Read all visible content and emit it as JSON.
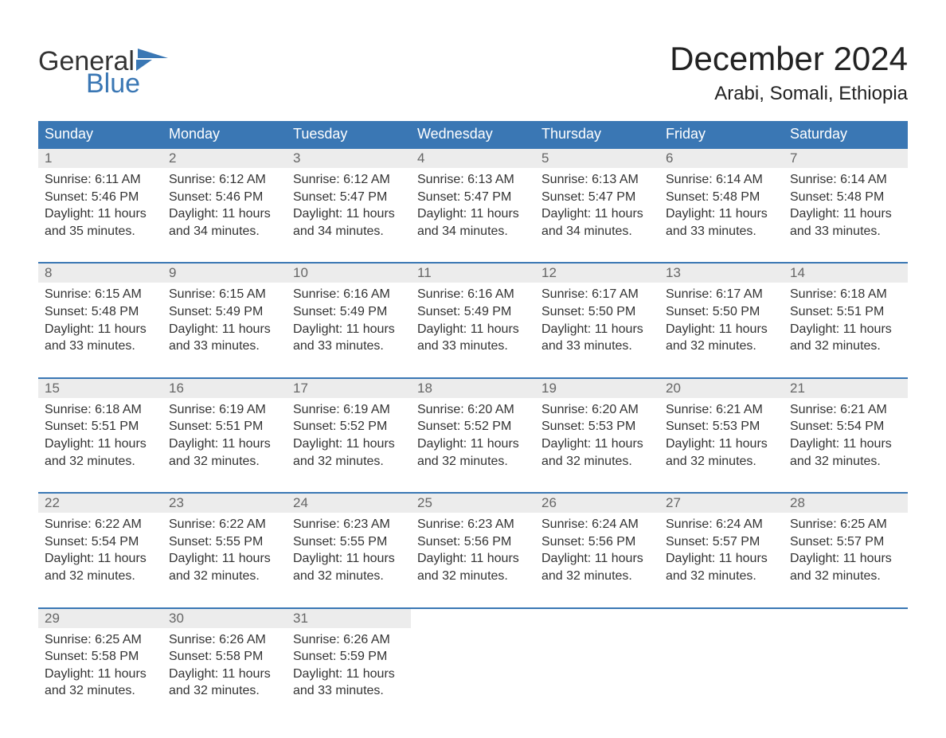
{
  "logo": {
    "word1": "General",
    "word2": "Blue",
    "flag_color": "#3a77b4"
  },
  "title": "December 2024",
  "location": "Arabi, Somali, Ethiopia",
  "colors": {
    "header_bg": "#3a77b4",
    "header_text": "#ffffff",
    "daynum_bg": "#ececec",
    "daynum_text": "#666666",
    "body_text": "#333333",
    "row_border": "#3a77b4"
  },
  "day_headers": [
    "Sunday",
    "Monday",
    "Tuesday",
    "Wednesday",
    "Thursday",
    "Friday",
    "Saturday"
  ],
  "weeks": [
    [
      {
        "num": "1",
        "sunrise": "Sunrise: 6:11 AM",
        "sunset": "Sunset: 5:46 PM",
        "dl1": "Daylight: 11 hours",
        "dl2": "and 35 minutes."
      },
      {
        "num": "2",
        "sunrise": "Sunrise: 6:12 AM",
        "sunset": "Sunset: 5:46 PM",
        "dl1": "Daylight: 11 hours",
        "dl2": "and 34 minutes."
      },
      {
        "num": "3",
        "sunrise": "Sunrise: 6:12 AM",
        "sunset": "Sunset: 5:47 PM",
        "dl1": "Daylight: 11 hours",
        "dl2": "and 34 minutes."
      },
      {
        "num": "4",
        "sunrise": "Sunrise: 6:13 AM",
        "sunset": "Sunset: 5:47 PM",
        "dl1": "Daylight: 11 hours",
        "dl2": "and 34 minutes."
      },
      {
        "num": "5",
        "sunrise": "Sunrise: 6:13 AM",
        "sunset": "Sunset: 5:47 PM",
        "dl1": "Daylight: 11 hours",
        "dl2": "and 34 minutes."
      },
      {
        "num": "6",
        "sunrise": "Sunrise: 6:14 AM",
        "sunset": "Sunset: 5:48 PM",
        "dl1": "Daylight: 11 hours",
        "dl2": "and 33 minutes."
      },
      {
        "num": "7",
        "sunrise": "Sunrise: 6:14 AM",
        "sunset": "Sunset: 5:48 PM",
        "dl1": "Daylight: 11 hours",
        "dl2": "and 33 minutes."
      }
    ],
    [
      {
        "num": "8",
        "sunrise": "Sunrise: 6:15 AM",
        "sunset": "Sunset: 5:48 PM",
        "dl1": "Daylight: 11 hours",
        "dl2": "and 33 minutes."
      },
      {
        "num": "9",
        "sunrise": "Sunrise: 6:15 AM",
        "sunset": "Sunset: 5:49 PM",
        "dl1": "Daylight: 11 hours",
        "dl2": "and 33 minutes."
      },
      {
        "num": "10",
        "sunrise": "Sunrise: 6:16 AM",
        "sunset": "Sunset: 5:49 PM",
        "dl1": "Daylight: 11 hours",
        "dl2": "and 33 minutes."
      },
      {
        "num": "11",
        "sunrise": "Sunrise: 6:16 AM",
        "sunset": "Sunset: 5:49 PM",
        "dl1": "Daylight: 11 hours",
        "dl2": "and 33 minutes."
      },
      {
        "num": "12",
        "sunrise": "Sunrise: 6:17 AM",
        "sunset": "Sunset: 5:50 PM",
        "dl1": "Daylight: 11 hours",
        "dl2": "and 33 minutes."
      },
      {
        "num": "13",
        "sunrise": "Sunrise: 6:17 AM",
        "sunset": "Sunset: 5:50 PM",
        "dl1": "Daylight: 11 hours",
        "dl2": "and 32 minutes."
      },
      {
        "num": "14",
        "sunrise": "Sunrise: 6:18 AM",
        "sunset": "Sunset: 5:51 PM",
        "dl1": "Daylight: 11 hours",
        "dl2": "and 32 minutes."
      }
    ],
    [
      {
        "num": "15",
        "sunrise": "Sunrise: 6:18 AM",
        "sunset": "Sunset: 5:51 PM",
        "dl1": "Daylight: 11 hours",
        "dl2": "and 32 minutes."
      },
      {
        "num": "16",
        "sunrise": "Sunrise: 6:19 AM",
        "sunset": "Sunset: 5:51 PM",
        "dl1": "Daylight: 11 hours",
        "dl2": "and 32 minutes."
      },
      {
        "num": "17",
        "sunrise": "Sunrise: 6:19 AM",
        "sunset": "Sunset: 5:52 PM",
        "dl1": "Daylight: 11 hours",
        "dl2": "and 32 minutes."
      },
      {
        "num": "18",
        "sunrise": "Sunrise: 6:20 AM",
        "sunset": "Sunset: 5:52 PM",
        "dl1": "Daylight: 11 hours",
        "dl2": "and 32 minutes."
      },
      {
        "num": "19",
        "sunrise": "Sunrise: 6:20 AM",
        "sunset": "Sunset: 5:53 PM",
        "dl1": "Daylight: 11 hours",
        "dl2": "and 32 minutes."
      },
      {
        "num": "20",
        "sunrise": "Sunrise: 6:21 AM",
        "sunset": "Sunset: 5:53 PM",
        "dl1": "Daylight: 11 hours",
        "dl2": "and 32 minutes."
      },
      {
        "num": "21",
        "sunrise": "Sunrise: 6:21 AM",
        "sunset": "Sunset: 5:54 PM",
        "dl1": "Daylight: 11 hours",
        "dl2": "and 32 minutes."
      }
    ],
    [
      {
        "num": "22",
        "sunrise": "Sunrise: 6:22 AM",
        "sunset": "Sunset: 5:54 PM",
        "dl1": "Daylight: 11 hours",
        "dl2": "and 32 minutes."
      },
      {
        "num": "23",
        "sunrise": "Sunrise: 6:22 AM",
        "sunset": "Sunset: 5:55 PM",
        "dl1": "Daylight: 11 hours",
        "dl2": "and 32 minutes."
      },
      {
        "num": "24",
        "sunrise": "Sunrise: 6:23 AM",
        "sunset": "Sunset: 5:55 PM",
        "dl1": "Daylight: 11 hours",
        "dl2": "and 32 minutes."
      },
      {
        "num": "25",
        "sunrise": "Sunrise: 6:23 AM",
        "sunset": "Sunset: 5:56 PM",
        "dl1": "Daylight: 11 hours",
        "dl2": "and 32 minutes."
      },
      {
        "num": "26",
        "sunrise": "Sunrise: 6:24 AM",
        "sunset": "Sunset: 5:56 PM",
        "dl1": "Daylight: 11 hours",
        "dl2": "and 32 minutes."
      },
      {
        "num": "27",
        "sunrise": "Sunrise: 6:24 AM",
        "sunset": "Sunset: 5:57 PM",
        "dl1": "Daylight: 11 hours",
        "dl2": "and 32 minutes."
      },
      {
        "num": "28",
        "sunrise": "Sunrise: 6:25 AM",
        "sunset": "Sunset: 5:57 PM",
        "dl1": "Daylight: 11 hours",
        "dl2": "and 32 minutes."
      }
    ],
    [
      {
        "num": "29",
        "sunrise": "Sunrise: 6:25 AM",
        "sunset": "Sunset: 5:58 PM",
        "dl1": "Daylight: 11 hours",
        "dl2": "and 32 minutes."
      },
      {
        "num": "30",
        "sunrise": "Sunrise: 6:26 AM",
        "sunset": "Sunset: 5:58 PM",
        "dl1": "Daylight: 11 hours",
        "dl2": "and 32 minutes."
      },
      {
        "num": "31",
        "sunrise": "Sunrise: 6:26 AM",
        "sunset": "Sunset: 5:59 PM",
        "dl1": "Daylight: 11 hours",
        "dl2": "and 33 minutes."
      },
      null,
      null,
      null,
      null
    ]
  ]
}
